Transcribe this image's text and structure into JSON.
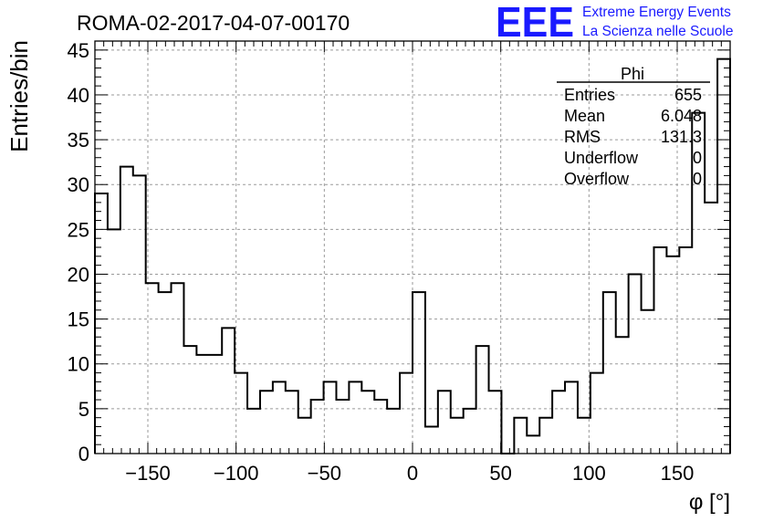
{
  "header": {
    "run_title": "ROMA-02-2017-04-07-00170",
    "logo_text": "EEE",
    "org_line1": "Extreme Energy Events",
    "org_line2": "La Scienza nelle Scuole",
    "brand_color": "#1a1aff"
  },
  "stats": {
    "name": "Phi",
    "rows": [
      {
        "label": "Entries",
        "value": "655"
      },
      {
        "label": "Mean",
        "value": "6.048"
      },
      {
        "label": "RMS",
        "value": "131.3"
      },
      {
        "label": "Underflow",
        "value": "0"
      },
      {
        "label": "Overflow",
        "value": "0"
      }
    ]
  },
  "chart_data": {
    "type": "bar",
    "histogram": true,
    "title": "ROMA-02-2017-04-07-00170",
    "xlabel": "φ [°]",
    "ylabel": "Entries/bin",
    "xlim": [
      -180,
      180
    ],
    "ylim": [
      0,
      46
    ],
    "bin_width": 7.2,
    "x_ticks": [
      -150,
      -100,
      -50,
      0,
      50,
      100,
      150
    ],
    "x_tick_labels": [
      "−150",
      "−100",
      "−50",
      "0",
      "50",
      "100",
      "150"
    ],
    "y_ticks": [
      0,
      5,
      10,
      15,
      20,
      25,
      30,
      35,
      40,
      45
    ],
    "y_tick_labels": [
      "0",
      "5",
      "10",
      "15",
      "20",
      "25",
      "30",
      "35",
      "40",
      "45"
    ],
    "grid": true,
    "values": [
      29,
      25,
      32,
      31,
      19,
      18,
      19,
      12,
      11,
      11,
      14,
      9,
      5,
      7,
      8,
      7,
      4,
      6,
      8,
      6,
      8,
      7,
      6,
      5,
      9,
      18,
      3,
      7,
      4,
      5,
      12,
      7,
      0,
      4,
      2,
      4,
      7,
      8,
      4,
      9,
      18,
      13,
      20,
      16,
      23,
      22,
      23,
      38,
      28,
      44
    ]
  }
}
